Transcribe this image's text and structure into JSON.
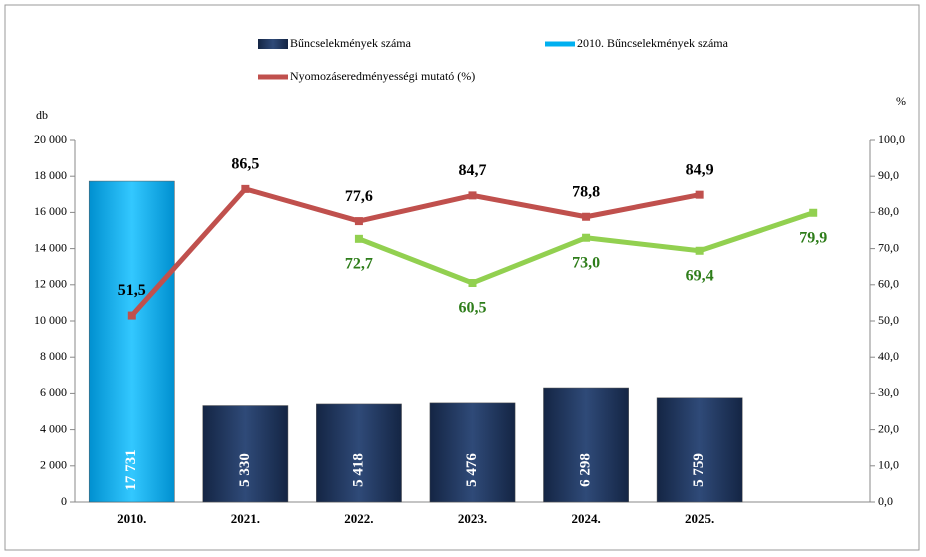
{
  "chart_data": {
    "type": "bar-line",
    "categories": [
      "2010.",
      "2021.",
      "2022.",
      "2023.",
      "2024.",
      "2025.",
      null
    ],
    "series": [
      {
        "name": "Bűncselekmények száma",
        "type": "bar",
        "color": "#1f3864",
        "values": [
          null,
          5330,
          5418,
          5476,
          6298,
          5759,
          null
        ],
        "value_labels": [
          null,
          "5 330",
          "5 418",
          "5 476",
          "6 298",
          "5 759",
          null
        ]
      },
      {
        "name": "2010. Bűncselekmények száma",
        "type": "bar",
        "color": "#00b0f0",
        "values": [
          17731,
          null,
          null,
          null,
          null,
          null,
          null
        ],
        "value_labels": [
          "17 731",
          null,
          null,
          null,
          null,
          null,
          null
        ]
      },
      {
        "name": "Nyomozáseredményességi mutató (%)",
        "type": "line",
        "axis": "y2",
        "color": "#c0504d",
        "values": [
          51.5,
          86.5,
          77.6,
          84.7,
          78.8,
          84.9,
          null
        ],
        "value_labels": [
          "51,5",
          "86,5",
          "77,6",
          "84,7",
          "78,8",
          "84,9",
          null
        ]
      },
      {
        "type": "line",
        "axis": "y2",
        "color": "#92d050",
        "values": [
          null,
          null,
          72.7,
          60.5,
          73.0,
          69.4,
          79.9
        ],
        "value_labels": [
          null,
          null,
          "72,7",
          "60,5",
          "73,0",
          "69,4",
          "79,9"
        ]
      }
    ],
    "y_label": "db",
    "y2_label": "%",
    "ylim": [
      0,
      20000
    ],
    "yticks": [
      0,
      {
        "value": 2000,
        "label": "2 000"
      },
      {
        "value": 4000,
        "label": "4 000"
      },
      {
        "value": 6000,
        "label": "6 000"
      },
      {
        "value": 8000,
        "label": "8 000"
      },
      {
        "value": 10000,
        "label": "10 000"
      },
      {
        "value": 12000,
        "label": "12 000"
      },
      {
        "value": 14000,
        "label": "14 000"
      },
      {
        "value": 16000,
        "label": "16 000"
      },
      {
        "value": 18000,
        "label": "18 000"
      },
      {
        "value": 20000,
        "label": "20 000"
      }
    ],
    "y2lim": [
      0,
      100
    ],
    "y2ticks": [
      {
        "value": 0,
        "label": "0,0"
      },
      {
        "value": 10,
        "label": "10,0"
      },
      {
        "value": 20,
        "label": "20,0"
      },
      {
        "value": 30,
        "label": "30,0"
      },
      {
        "value": 40,
        "label": "40,0"
      },
      {
        "value": 50,
        "label": "50,0"
      },
      {
        "value": 60,
        "label": "60,0"
      },
      {
        "value": 70,
        "label": "70,0"
      },
      {
        "value": 80,
        "label": "80,0"
      },
      {
        "value": 90,
        "label": "90,0"
      },
      {
        "value": 100,
        "label": "100,0"
      }
    ]
  }
}
